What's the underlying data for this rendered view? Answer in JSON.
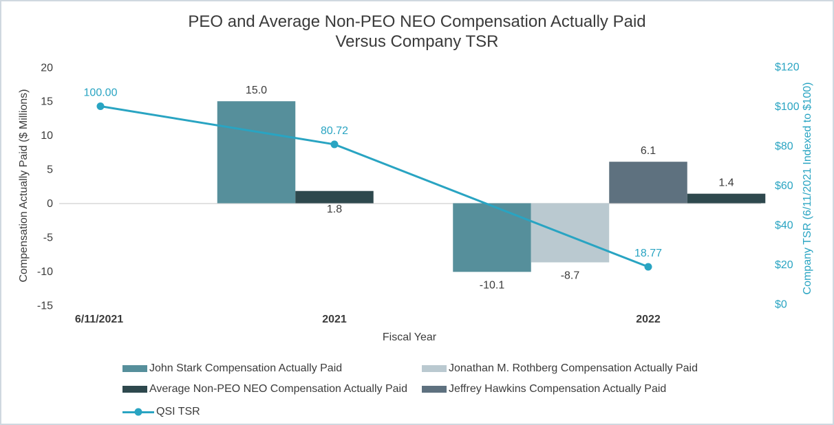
{
  "title": {
    "line1": "PEO and Average Non-PEO NEO Compensation Actually Paid",
    "line2": "Versus Company TSR"
  },
  "chart_data": {
    "type": "bar+line combo",
    "categories": [
      "6/11/2021",
      "2021",
      "2022"
    ],
    "xlabel": "Fiscal Year",
    "grid": "zero-line-only",
    "legend_position": "bottom",
    "left_axis": {
      "label": "Compensation Actually Paid ($ Millions)",
      "ticks": [
        "20",
        "15",
        "10",
        "5",
        "0",
        "-5",
        "-10",
        "-15"
      ],
      "tick_values": [
        20,
        15,
        10,
        5,
        0,
        -5,
        -10,
        -15
      ],
      "range": [
        -15,
        20
      ]
    },
    "right_axis": {
      "label": "Company TSR (6/11/2021 Indexed to $100)",
      "ticks": [
        "$120",
        "$100",
        "$80",
        "$60",
        "$40",
        "$20",
        "$0"
      ],
      "tick_values": [
        120,
        100,
        80,
        60,
        40,
        20,
        0
      ],
      "range": [
        0,
        120
      ],
      "color": "#29a4c2"
    },
    "series": [
      {
        "key": "john-stark",
        "name": "John Stark Compensation Actually Paid",
        "type": "bar",
        "color": "#568f9b",
        "values": [
          null,
          15.0,
          -10.1
        ],
        "labels": [
          null,
          "15.0",
          "-10.1"
        ]
      },
      {
        "key": "jonathan-rothberg",
        "name": "Jonathan M. Rothberg Compensation Actually Paid",
        "type": "bar",
        "color": "#bac9d0",
        "values": [
          null,
          null,
          -8.7
        ],
        "labels": [
          null,
          null,
          "-8.7"
        ]
      },
      {
        "key": "avg-non-peo-neo",
        "name": "Average Non-PEO NEO Compensation Actually Paid",
        "type": "bar",
        "color": "#2e484d",
        "values": [
          null,
          1.8,
          1.4
        ],
        "labels": [
          null,
          "1.8",
          "1.4"
        ]
      },
      {
        "key": "jeffrey-hawkins",
        "name": "Jeffrey Hawkins Compensation Actually Paid",
        "type": "bar",
        "color": "#5e717f",
        "values": [
          null,
          null,
          6.1
        ],
        "labels": [
          null,
          null,
          "6.1"
        ]
      },
      {
        "key": "qsi-tsr",
        "name": "QSI TSR",
        "type": "line",
        "color": "#29a4c2",
        "values": [
          100.0,
          80.72,
          18.77
        ],
        "labels": [
          "100.00",
          "80.72",
          "18.77"
        ]
      }
    ]
  }
}
